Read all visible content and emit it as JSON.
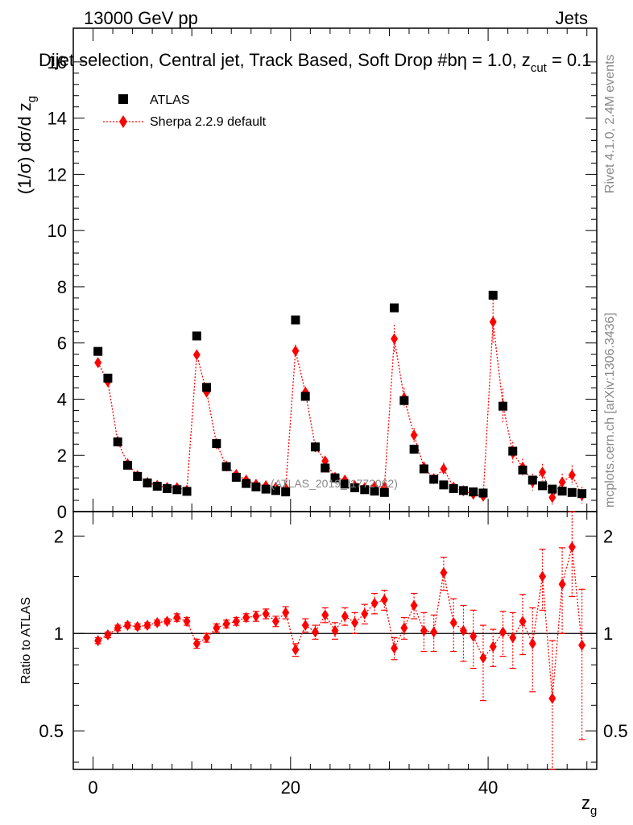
{
  "header": {
    "energy_label": "13000 GeV pp",
    "category_label": "Jets",
    "plot_title": "Dijet selection, Central jet, Track Based, Soft Drop #beta = 1.0, z_cut = 0.1",
    "title_main": "Dijet selection, Central jet, Track Based, Soft Drop #b",
    "title_eta": "η = 1.0, z",
    "title_sub": "cut",
    "title_end": " = 0.1",
    "side_rivet": "Rivet 4.1.0,  2.4M events",
    "side_mcplots": "mcplots.cern.ch [arXiv:1306.3436]",
    "watermark": "(ATLAS_2019_I1772062)"
  },
  "legend": {
    "data_label": "ATLAS",
    "mc_label": "Sherpa 2.2.9 default"
  },
  "colors": {
    "data": "#000000",
    "mc": "#ff0000"
  },
  "chart_data": [
    {
      "type": "scatter",
      "panel": "main",
      "ylabel": "(1/σ) dσ/d z_g",
      "ylabel_main": "(1/σ) dσ/d z",
      "ylabel_sub": "g",
      "xlim": [
        -2,
        51
      ],
      "ylim": [
        0,
        17.2
      ],
      "yticks": [
        0,
        2,
        4,
        6,
        8,
        10,
        12,
        14,
        16
      ],
      "ytick_labels": [
        "0",
        "2",
        "4",
        "6",
        "8",
        "10",
        "12",
        "14",
        "16"
      ],
      "x": [
        0.5,
        1.5,
        2.5,
        3.5,
        4.5,
        5.5,
        6.5,
        7.5,
        8.5,
        9.5,
        10.5,
        11.5,
        12.5,
        13.5,
        14.5,
        15.5,
        16.5,
        17.5,
        18.5,
        19.5,
        20.5,
        21.5,
        22.5,
        23.5,
        24.5,
        25.5,
        26.5,
        27.5,
        28.5,
        29.5,
        30.5,
        31.5,
        32.5,
        33.5,
        34.5,
        35.5,
        36.5,
        37.5,
        38.5,
        39.5,
        40.5,
        41.5,
        42.5,
        43.5,
        44.5,
        45.5,
        46.5,
        47.5,
        48.5,
        49.5
      ],
      "series": [
        {
          "name": "ATLAS",
          "marker": "square",
          "values": [
            5.7,
            4.75,
            2.48,
            1.65,
            1.25,
            1.02,
            0.9,
            0.82,
            0.78,
            0.72,
            6.25,
            4.42,
            2.42,
            1.6,
            1.22,
            1.0,
            0.88,
            0.8,
            0.75,
            0.7,
            6.82,
            4.1,
            2.3,
            1.55,
            1.2,
            0.98,
            0.85,
            0.78,
            0.73,
            0.68,
            7.25,
            3.95,
            2.22,
            1.52,
            1.15,
            0.95,
            0.82,
            0.75,
            0.7,
            0.66,
            7.7,
            3.75,
            2.15,
            1.48,
            1.12,
            0.92,
            0.8,
            0.73,
            0.68,
            0.64
          ]
        },
        {
          "name": "Sherpa 2.2.9 default",
          "marker": "diamond",
          "values": [
            5.3,
            4.62,
            2.5,
            1.7,
            1.28,
            1.04,
            0.93,
            0.86,
            0.85,
            0.76,
            5.58,
            4.25,
            2.42,
            1.62,
            1.32,
            1.12,
            0.97,
            0.92,
            0.86,
            0.84,
            5.72,
            4.25,
            2.3,
            1.8,
            1.22,
            1.12,
            0.92,
            0.85,
            0.9,
            0.87,
            6.15,
            4.05,
            2.72,
            1.58,
            1.17,
            1.52,
            0.87,
            0.74,
            0.62,
            0.55,
            6.75,
            3.78,
            2.08,
            1.58,
            1.05,
            1.4,
            0.5,
            1.05,
            1.3,
            0.58
          ],
          "errors": [
            0.12,
            0.1,
            0.06,
            0.05,
            0.04,
            0.04,
            0.04,
            0.04,
            0.04,
            0.04,
            0.15,
            0.12,
            0.07,
            0.05,
            0.05,
            0.05,
            0.05,
            0.05,
            0.05,
            0.05,
            0.22,
            0.18,
            0.12,
            0.1,
            0.08,
            0.08,
            0.08,
            0.08,
            0.08,
            0.08,
            0.5,
            0.35,
            0.25,
            0.2,
            0.15,
            0.22,
            0.15,
            0.15,
            0.12,
            0.12,
            0.8,
            0.6,
            0.4,
            0.3,
            0.3,
            0.3,
            0.25,
            0.3,
            0.35,
            0.3
          ]
        }
      ]
    },
    {
      "type": "scatter",
      "panel": "ratio",
      "ylabel": "Ratio to ATLAS",
      "xlabel": "z_g",
      "xlabel_main": "z",
      "xlabel_sub": "g",
      "xlim": [
        -2,
        51
      ],
      "ylim": [
        0.38,
        2.38
      ],
      "yticks": [
        0.5,
        1,
        2
      ],
      "ytick_labels": [
        "0.5",
        "1",
        "2"
      ],
      "xticks": [
        0,
        20,
        40
      ],
      "xtick_labels": [
        "0",
        "20",
        "40"
      ],
      "reference_line": 1.0,
      "series": [
        {
          "name": "Sherpa 2.2.9 default",
          "values": [
            0.95,
            0.99,
            1.04,
            1.06,
            1.05,
            1.06,
            1.08,
            1.09,
            1.12,
            1.09,
            0.93,
            0.97,
            1.04,
            1.07,
            1.09,
            1.12,
            1.13,
            1.15,
            1.09,
            1.16,
            0.89,
            1.06,
            1.01,
            1.14,
            1.02,
            1.13,
            1.08,
            1.15,
            1.24,
            1.27,
            0.9,
            1.04,
            1.22,
            1.02,
            1.01,
            1.54,
            1.08,
            1.02,
            0.98,
            0.84,
            0.91,
            1.01,
            0.97,
            1.09,
            0.93,
            1.5,
            0.63,
            1.42,
            1.85,
            0.92
          ],
          "errors": [
            0.02,
            0.02,
            0.02,
            0.02,
            0.02,
            0.02,
            0.02,
            0.02,
            0.03,
            0.03,
            0.03,
            0.03,
            0.03,
            0.03,
            0.03,
            0.03,
            0.04,
            0.04,
            0.04,
            0.05,
            0.04,
            0.05,
            0.05,
            0.06,
            0.06,
            0.07,
            0.08,
            0.08,
            0.09,
            0.09,
            0.07,
            0.08,
            0.11,
            0.14,
            0.13,
            0.18,
            0.2,
            0.2,
            0.2,
            0.22,
            0.12,
            0.16,
            0.19,
            0.23,
            0.27,
            0.32,
            0.32,
            0.42,
            0.55,
            0.45
          ]
        }
      ]
    }
  ]
}
